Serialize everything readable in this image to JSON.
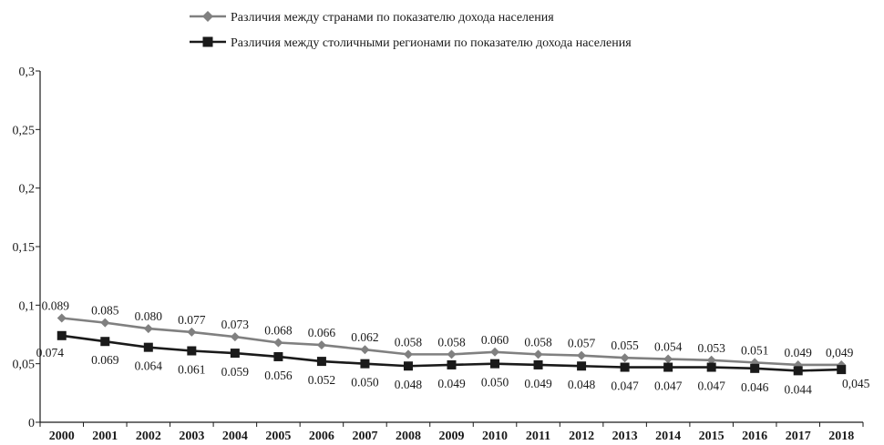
{
  "chart_data": {
    "type": "line",
    "categories": [
      "2000",
      "2001",
      "2002",
      "2003",
      "2004",
      "2005",
      "2006",
      "2007",
      "2008",
      "2009",
      "2010",
      "2011",
      "2012",
      "2013",
      "2014",
      "2015",
      "2016",
      "2017",
      "2018"
    ],
    "ylim": [
      0,
      0.3
    ],
    "yticks": [
      0,
      0.05,
      0.1,
      0.15,
      0.2,
      0.25,
      0.3
    ],
    "ytick_labels": [
      "0",
      "0,05",
      "0,1",
      "0,15",
      "0,2",
      "0,25",
      "0,3"
    ],
    "grid": false,
    "legend_position": "top-center",
    "series": [
      {
        "name": "Различия между странами по показателю дохода населения",
        "marker": "diamond",
        "color": "#808080",
        "values": [
          0.089,
          0.085,
          0.08,
          0.077,
          0.073,
          0.068,
          0.066,
          0.062,
          0.058,
          0.058,
          0.06,
          0.058,
          0.057,
          0.055,
          0.054,
          0.053,
          0.051,
          0.049,
          0.049
        ],
        "labels": [
          "0.089",
          "0.085",
          "0.080",
          "0.077",
          "0.073",
          "0.068",
          "0.066",
          "0.062",
          "0.058",
          "0.058",
          "0.060",
          "0.058",
          "0.057",
          "0.055",
          "0.054",
          "0.053",
          "0.051",
          "0.049",
          "0,049"
        ]
      },
      {
        "name": "Различия между столичными регионами по показателю дохода населения",
        "marker": "square",
        "color": "#1a1a1a",
        "values": [
          0.074,
          0.069,
          0.064,
          0.061,
          0.059,
          0.056,
          0.052,
          0.05,
          0.048,
          0.049,
          0.05,
          0.049,
          0.048,
          0.047,
          0.047,
          0.047,
          0.046,
          0.044,
          0.045
        ],
        "labels": [
          "0.074",
          "0.069",
          "0.064",
          "0.061",
          "0.059",
          "0.056",
          "0.052",
          "0.050",
          "0.048",
          "0.049",
          "0.050",
          "0.049",
          "0.048",
          "0.047",
          "0.047",
          "0.047",
          "0.046",
          "0.044",
          "0,045"
        ]
      }
    ]
  }
}
